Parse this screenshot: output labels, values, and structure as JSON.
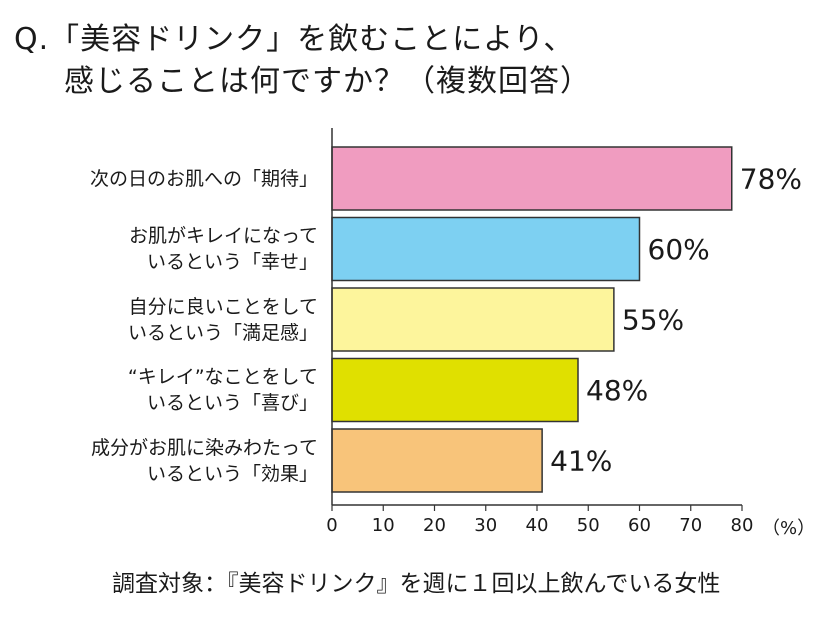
{
  "title": {
    "line1": "Q.「美容ドリンク」を飲むことにより、",
    "line2": "感じることは何ですか？（複数回答）"
  },
  "chart_data": {
    "type": "bar",
    "orientation": "horizontal",
    "categories": [
      [
        "次の日のお肌への「期待」"
      ],
      [
        "お肌がキレイになって",
        "いるという「幸せ」"
      ],
      [
        "自分に良いことをして",
        "いるという「満足感」"
      ],
      [
        "“キレイ”なことをして",
        "いるという「喜び」"
      ],
      [
        "成分がお肌に染みわたって",
        "いるという「効果」"
      ]
    ],
    "values": [
      78,
      60,
      55,
      48,
      41
    ],
    "value_labels": [
      "78%",
      "60%",
      "55%",
      "48%",
      "41%"
    ],
    "colors": [
      "#f09cc0",
      "#7dd0f2",
      "#fdf59c",
      "#e0e000",
      "#f8c47a"
    ],
    "xlim": [
      0,
      80
    ],
    "xticks": [
      "0",
      "10",
      "20",
      "30",
      "40",
      "50",
      "60",
      "70",
      "80"
    ],
    "xunit": "（%）",
    "grid": false
  },
  "footnote": "調査対象：『美容ドリンク』を週に１回以上飲んでいる女性"
}
